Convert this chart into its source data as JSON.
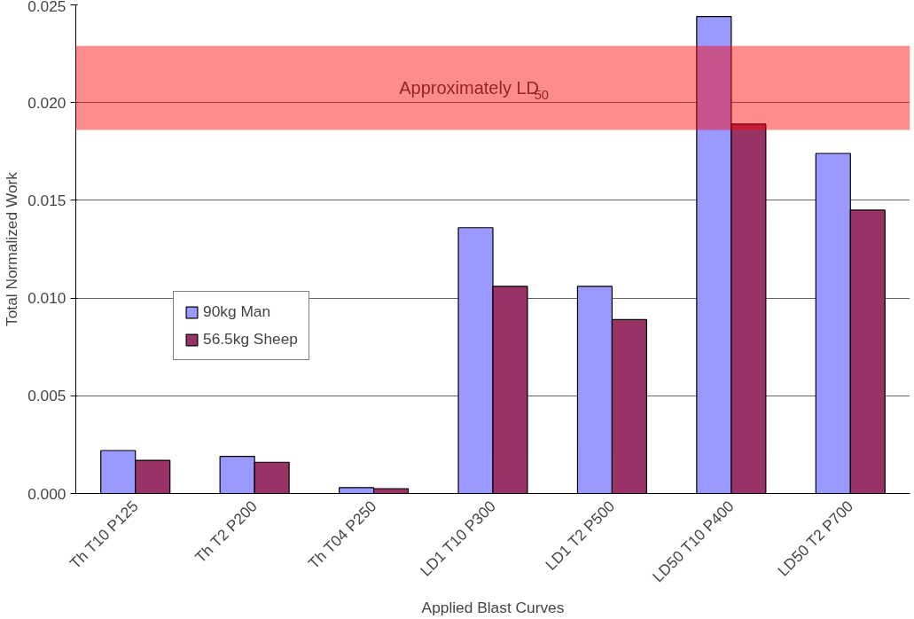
{
  "chart_data": {
    "type": "bar",
    "xlabel": "Applied Blast Curves",
    "ylabel": "Total Normalized Work",
    "categories": [
      "Th T10 P125",
      "Th T2 P200",
      "Th T04 P250",
      "LD1 T10 P300",
      "LD1 T2 P500",
      "LD50 T10 P400",
      "LD50 T2 P700"
    ],
    "series": [
      {
        "name": "90kg Man",
        "color": "#9999ff",
        "values": [
          0.0022,
          0.0019,
          0.0003,
          0.0136,
          0.0106,
          0.0244,
          0.0174
        ]
      },
      {
        "name": "56.5kg Sheep",
        "color": "#993366",
        "values": [
          0.0017,
          0.0016,
          0.00025,
          0.0106,
          0.0089,
          0.0189,
          0.0145
        ]
      }
    ],
    "ylim": [
      0,
      0.025
    ],
    "yticks": [
      {
        "value": 0,
        "label": "0.000"
      },
      {
        "value": 0.005,
        "label": "0.005"
      },
      {
        "value": 0.01,
        "label": "0.010"
      },
      {
        "value": 0.015,
        "label": "0.015"
      },
      {
        "value": 0.02,
        "label": "0.020"
      },
      {
        "value": 0.025,
        "label": "0.025"
      }
    ],
    "bands": [
      {
        "axis": "y",
        "from": 0.0186,
        "to": 0.0229,
        "label": "Approximately LD$_{50}$",
        "color": "#ff0000"
      }
    ],
    "grid": "y",
    "legend": "left"
  }
}
